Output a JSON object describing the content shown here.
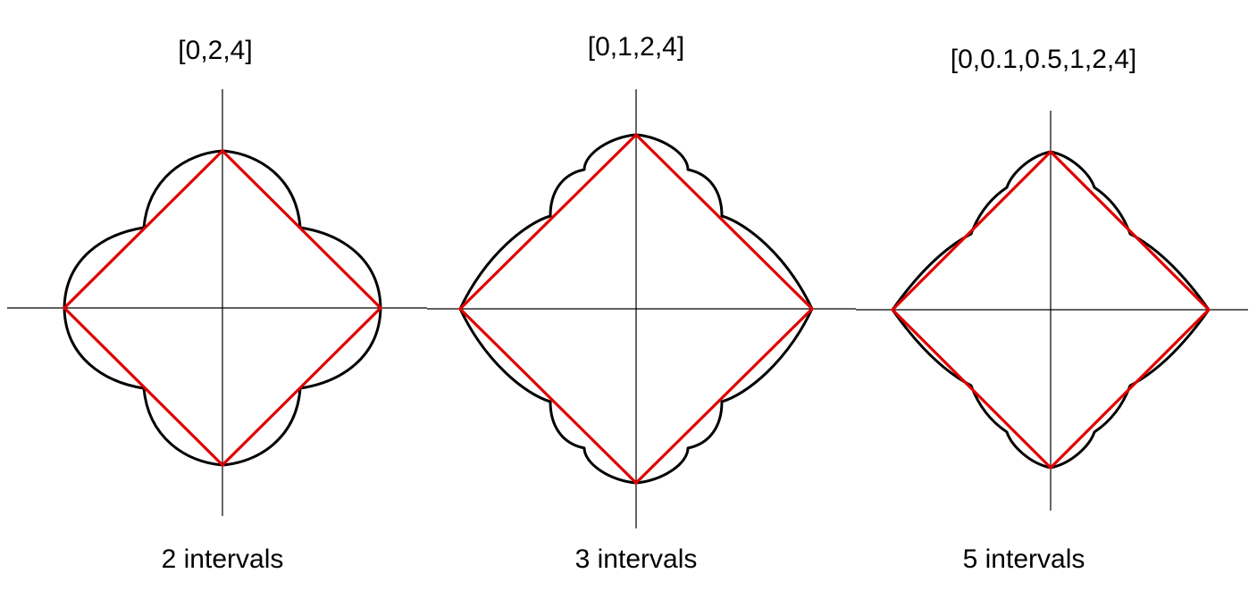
{
  "panels": [
    {
      "title": "[0,2,4]",
      "caption": "2 intervals",
      "intervals": 2,
      "breakpoints": [
        0,
        2,
        4
      ]
    },
    {
      "title": "[0,1,2,4]",
      "caption": "3 intervals",
      "intervals": 3,
      "breakpoints": [
        0,
        1,
        2,
        4
      ]
    },
    {
      "title": "[0,0.1,0.5,1,2,4]",
      "caption": "5 intervals",
      "intervals": 5,
      "breakpoints": [
        0,
        0.1,
        0.5,
        1,
        2,
        4
      ]
    }
  ],
  "colors": {
    "curve": "#000000",
    "square": "#e00000",
    "axes": "#000000",
    "background": "#ffffff"
  }
}
